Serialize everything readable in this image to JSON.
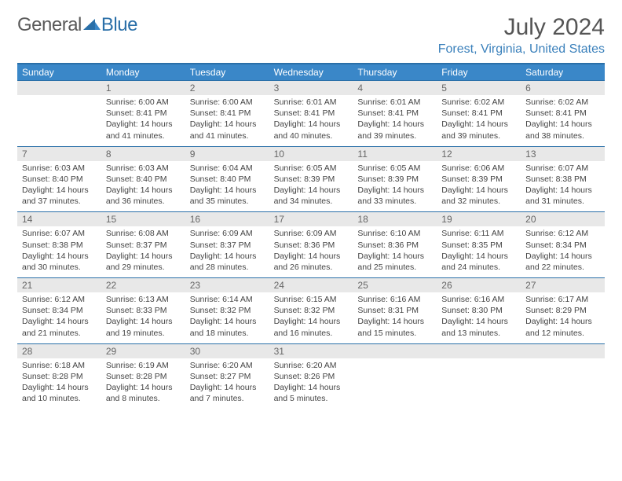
{
  "logo": {
    "text1": "General",
    "text2": "Blue"
  },
  "title": "July 2024",
  "location": "Forest, Virginia, United States",
  "colors": {
    "header_blue": "#3a87c8",
    "border_blue": "#2a6fa8",
    "location_blue": "#3a80bb",
    "daynum_bg": "#e8e8e8"
  },
  "day_names": [
    "Sunday",
    "Monday",
    "Tuesday",
    "Wednesday",
    "Thursday",
    "Friday",
    "Saturday"
  ],
  "weeks": [
    [
      {
        "n": "",
        "sr": "",
        "ss": "",
        "dl1": "",
        "dl2": ""
      },
      {
        "n": "1",
        "sr": "Sunrise: 6:00 AM",
        "ss": "Sunset: 8:41 PM",
        "dl1": "Daylight: 14 hours",
        "dl2": "and 41 minutes."
      },
      {
        "n": "2",
        "sr": "Sunrise: 6:00 AM",
        "ss": "Sunset: 8:41 PM",
        "dl1": "Daylight: 14 hours",
        "dl2": "and 41 minutes."
      },
      {
        "n": "3",
        "sr": "Sunrise: 6:01 AM",
        "ss": "Sunset: 8:41 PM",
        "dl1": "Daylight: 14 hours",
        "dl2": "and 40 minutes."
      },
      {
        "n": "4",
        "sr": "Sunrise: 6:01 AM",
        "ss": "Sunset: 8:41 PM",
        "dl1": "Daylight: 14 hours",
        "dl2": "and 39 minutes."
      },
      {
        "n": "5",
        "sr": "Sunrise: 6:02 AM",
        "ss": "Sunset: 8:41 PM",
        "dl1": "Daylight: 14 hours",
        "dl2": "and 39 minutes."
      },
      {
        "n": "6",
        "sr": "Sunrise: 6:02 AM",
        "ss": "Sunset: 8:41 PM",
        "dl1": "Daylight: 14 hours",
        "dl2": "and 38 minutes."
      }
    ],
    [
      {
        "n": "7",
        "sr": "Sunrise: 6:03 AM",
        "ss": "Sunset: 8:40 PM",
        "dl1": "Daylight: 14 hours",
        "dl2": "and 37 minutes."
      },
      {
        "n": "8",
        "sr": "Sunrise: 6:03 AM",
        "ss": "Sunset: 8:40 PM",
        "dl1": "Daylight: 14 hours",
        "dl2": "and 36 minutes."
      },
      {
        "n": "9",
        "sr": "Sunrise: 6:04 AM",
        "ss": "Sunset: 8:40 PM",
        "dl1": "Daylight: 14 hours",
        "dl2": "and 35 minutes."
      },
      {
        "n": "10",
        "sr": "Sunrise: 6:05 AM",
        "ss": "Sunset: 8:39 PM",
        "dl1": "Daylight: 14 hours",
        "dl2": "and 34 minutes."
      },
      {
        "n": "11",
        "sr": "Sunrise: 6:05 AM",
        "ss": "Sunset: 8:39 PM",
        "dl1": "Daylight: 14 hours",
        "dl2": "and 33 minutes."
      },
      {
        "n": "12",
        "sr": "Sunrise: 6:06 AM",
        "ss": "Sunset: 8:39 PM",
        "dl1": "Daylight: 14 hours",
        "dl2": "and 32 minutes."
      },
      {
        "n": "13",
        "sr": "Sunrise: 6:07 AM",
        "ss": "Sunset: 8:38 PM",
        "dl1": "Daylight: 14 hours",
        "dl2": "and 31 minutes."
      }
    ],
    [
      {
        "n": "14",
        "sr": "Sunrise: 6:07 AM",
        "ss": "Sunset: 8:38 PM",
        "dl1": "Daylight: 14 hours",
        "dl2": "and 30 minutes."
      },
      {
        "n": "15",
        "sr": "Sunrise: 6:08 AM",
        "ss": "Sunset: 8:37 PM",
        "dl1": "Daylight: 14 hours",
        "dl2": "and 29 minutes."
      },
      {
        "n": "16",
        "sr": "Sunrise: 6:09 AM",
        "ss": "Sunset: 8:37 PM",
        "dl1": "Daylight: 14 hours",
        "dl2": "and 28 minutes."
      },
      {
        "n": "17",
        "sr": "Sunrise: 6:09 AM",
        "ss": "Sunset: 8:36 PM",
        "dl1": "Daylight: 14 hours",
        "dl2": "and 26 minutes."
      },
      {
        "n": "18",
        "sr": "Sunrise: 6:10 AM",
        "ss": "Sunset: 8:36 PM",
        "dl1": "Daylight: 14 hours",
        "dl2": "and 25 minutes."
      },
      {
        "n": "19",
        "sr": "Sunrise: 6:11 AM",
        "ss": "Sunset: 8:35 PM",
        "dl1": "Daylight: 14 hours",
        "dl2": "and 24 minutes."
      },
      {
        "n": "20",
        "sr": "Sunrise: 6:12 AM",
        "ss": "Sunset: 8:34 PM",
        "dl1": "Daylight: 14 hours",
        "dl2": "and 22 minutes."
      }
    ],
    [
      {
        "n": "21",
        "sr": "Sunrise: 6:12 AM",
        "ss": "Sunset: 8:34 PM",
        "dl1": "Daylight: 14 hours",
        "dl2": "and 21 minutes."
      },
      {
        "n": "22",
        "sr": "Sunrise: 6:13 AM",
        "ss": "Sunset: 8:33 PM",
        "dl1": "Daylight: 14 hours",
        "dl2": "and 19 minutes."
      },
      {
        "n": "23",
        "sr": "Sunrise: 6:14 AM",
        "ss": "Sunset: 8:32 PM",
        "dl1": "Daylight: 14 hours",
        "dl2": "and 18 minutes."
      },
      {
        "n": "24",
        "sr": "Sunrise: 6:15 AM",
        "ss": "Sunset: 8:32 PM",
        "dl1": "Daylight: 14 hours",
        "dl2": "and 16 minutes."
      },
      {
        "n": "25",
        "sr": "Sunrise: 6:16 AM",
        "ss": "Sunset: 8:31 PM",
        "dl1": "Daylight: 14 hours",
        "dl2": "and 15 minutes."
      },
      {
        "n": "26",
        "sr": "Sunrise: 6:16 AM",
        "ss": "Sunset: 8:30 PM",
        "dl1": "Daylight: 14 hours",
        "dl2": "and 13 minutes."
      },
      {
        "n": "27",
        "sr": "Sunrise: 6:17 AM",
        "ss": "Sunset: 8:29 PM",
        "dl1": "Daylight: 14 hours",
        "dl2": "and 12 minutes."
      }
    ],
    [
      {
        "n": "28",
        "sr": "Sunrise: 6:18 AM",
        "ss": "Sunset: 8:28 PM",
        "dl1": "Daylight: 14 hours",
        "dl2": "and 10 minutes."
      },
      {
        "n": "29",
        "sr": "Sunrise: 6:19 AM",
        "ss": "Sunset: 8:28 PM",
        "dl1": "Daylight: 14 hours",
        "dl2": "and 8 minutes."
      },
      {
        "n": "30",
        "sr": "Sunrise: 6:20 AM",
        "ss": "Sunset: 8:27 PM",
        "dl1": "Daylight: 14 hours",
        "dl2": "and 7 minutes."
      },
      {
        "n": "31",
        "sr": "Sunrise: 6:20 AM",
        "ss": "Sunset: 8:26 PM",
        "dl1": "Daylight: 14 hours",
        "dl2": "and 5 minutes."
      },
      {
        "n": "",
        "sr": "",
        "ss": "",
        "dl1": "",
        "dl2": ""
      },
      {
        "n": "",
        "sr": "",
        "ss": "",
        "dl1": "",
        "dl2": ""
      },
      {
        "n": "",
        "sr": "",
        "ss": "",
        "dl1": "",
        "dl2": ""
      }
    ]
  ]
}
